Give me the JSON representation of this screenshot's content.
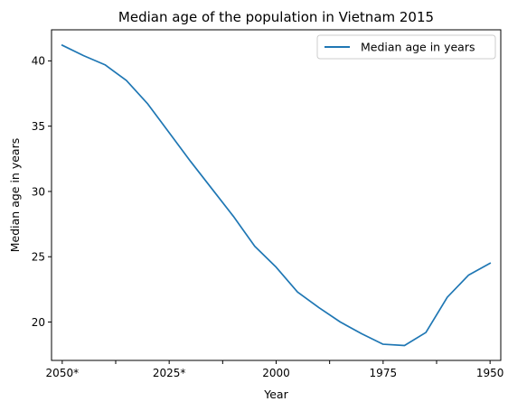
{
  "chart_data": {
    "type": "line",
    "title": "Median age of the population in Vietnam 2015",
    "xlabel": "Year",
    "ylabel": "Median age in years",
    "x_axis": {
      "reversed": true,
      "xlim": [
        2052.5,
        1947.5
      ],
      "labeled_ticks": [
        {
          "value": 2050,
          "label": "2050*"
        },
        {
          "value": 2025,
          "label": "2025*"
        },
        {
          "value": 2000,
          "label": "2000"
        },
        {
          "value": 1975,
          "label": "1975"
        },
        {
          "value": 1950,
          "label": "1950"
        }
      ],
      "minor_ticks": [
        2037.5,
        2012.5,
        1987.5,
        1962.5
      ]
    },
    "y_axis": {
      "ylim": [
        17.06,
        42.38
      ],
      "ticks": [
        20,
        25,
        30,
        35,
        40
      ]
    },
    "grid": false,
    "legend_placement": "top-right",
    "series": [
      {
        "name": "Median age in years",
        "color": "#1f77b4",
        "x": [
          2050,
          2045,
          2040,
          2035,
          2030,
          2025,
          2020,
          2015,
          2010,
          2005,
          2000,
          1995,
          1990,
          1985,
          1980,
          1975,
          1970,
          1965,
          1960,
          1955,
          1950
        ],
        "y": [
          41.2,
          40.4,
          39.7,
          38.5,
          36.7,
          34.5,
          32.3,
          30.2,
          28.1,
          25.8,
          24.2,
          22.3,
          21.1,
          20.0,
          19.1,
          18.3,
          18.2,
          19.2,
          21.9,
          23.6,
          24.5
        ]
      }
    ]
  }
}
